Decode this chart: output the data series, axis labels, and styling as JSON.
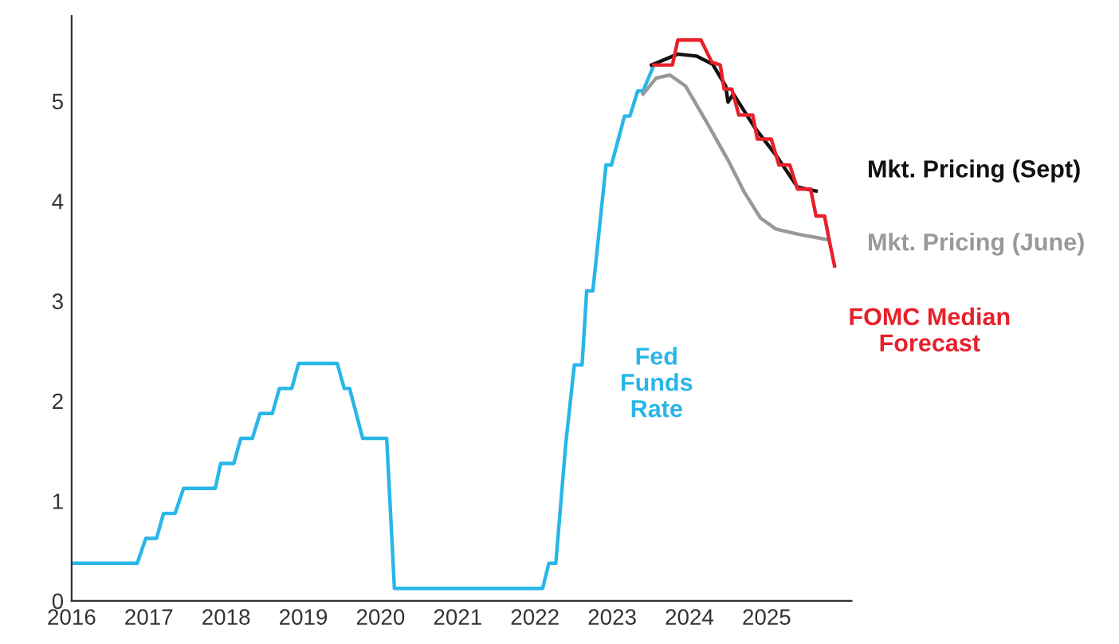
{
  "chart_data": {
    "type": "line",
    "xlim": [
      2016,
      2026.1
    ],
    "ylim": [
      0,
      5.85
    ],
    "xticks": [
      2016,
      2017,
      2018,
      2019,
      2020,
      2021,
      2022,
      2023,
      2024,
      2025
    ],
    "yticks": [
      0,
      1,
      2,
      3,
      4,
      5
    ],
    "grid": false,
    "legend": false,
    "marker": "none",
    "line_style": "solid",
    "series": [
      {
        "name": "Fed\nFunds\nRate",
        "color": "#29b6e8",
        "x": [
          2016.0,
          2016.85,
          2016.96,
          2017.1,
          2017.19,
          2017.34,
          2017.45,
          2017.86,
          2017.93,
          2018.1,
          2018.19,
          2018.34,
          2018.44,
          2018.6,
          2018.69,
          2018.85,
          2018.94,
          2019.44,
          2019.53,
          2019.6,
          2019.77,
          2020.08,
          2020.18,
          2022.1,
          2022.18,
          2022.27,
          2022.4,
          2022.51,
          2022.61,
          2022.67,
          2022.75,
          2022.92,
          2022.99,
          2023.16,
          2023.23,
          2023.33,
          2023.4,
          2023.54
        ],
        "values": [
          0.375,
          0.375,
          0.625,
          0.625,
          0.875,
          0.875,
          1.125,
          1.125,
          1.375,
          1.375,
          1.625,
          1.625,
          1.875,
          1.875,
          2.125,
          2.125,
          2.375,
          2.375,
          2.125,
          2.125,
          1.625,
          1.625,
          0.125,
          0.125,
          0.375,
          0.375,
          1.58,
          2.36,
          2.36,
          3.1,
          3.1,
          4.36,
          4.36,
          4.85,
          4.85,
          5.1,
          5.1,
          5.36
        ]
      },
      {
        "name": "Mkt. Pricing (June)",
        "color": "#999999",
        "x": [
          2023.4,
          2023.57,
          2023.75,
          2023.95,
          2024.23,
          2024.5,
          2024.71,
          2024.92,
          2025.12,
          2025.4,
          2025.81
        ],
        "values": [
          5.07,
          5.23,
          5.26,
          5.15,
          4.78,
          4.41,
          4.09,
          3.83,
          3.72,
          3.67,
          3.61
        ]
      },
      {
        "name": "Mkt. Pricing (Sept)",
        "color": "#111111",
        "x": [
          2023.51,
          2023.85,
          2024.09,
          2024.3,
          2024.47,
          2024.5,
          2024.57,
          2024.85,
          2025.12,
          2025.4,
          2025.64
        ],
        "values": [
          5.36,
          5.47,
          5.45,
          5.37,
          5.15,
          4.99,
          5.07,
          4.73,
          4.46,
          4.14,
          4.1
        ]
      },
      {
        "name": "FOMC Median\nForecast",
        "color": "#e8202a",
        "x": [
          2023.54,
          2023.78,
          2023.85,
          2024.15,
          2024.29,
          2024.4,
          2024.45,
          2024.55,
          2024.64,
          2024.82,
          2024.88,
          2025.06,
          2025.16,
          2025.3,
          2025.4,
          2025.57,
          2025.64,
          2025.75,
          2025.81,
          2025.88
        ],
        "values": [
          5.36,
          5.36,
          5.61,
          5.61,
          5.39,
          5.36,
          5.12,
          5.12,
          4.86,
          4.86,
          4.62,
          4.62,
          4.36,
          4.36,
          4.12,
          4.12,
          3.85,
          3.85,
          3.61,
          3.35
        ]
      }
    ]
  }
}
